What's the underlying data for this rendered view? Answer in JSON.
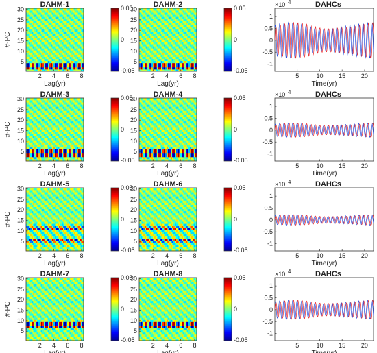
{
  "chart_data": [
    {
      "type": "heatmap",
      "title": "DAHM-1",
      "xlabel": "Lag(yr)",
      "ylabel": "#-PC",
      "xticks": [
        2,
        4,
        6,
        8
      ],
      "yticks": [
        5,
        10,
        15,
        20,
        25,
        30
      ],
      "xlim": [
        0,
        8.3
      ],
      "ylim": [
        0.5,
        30.5
      ],
      "colorbar": {
        "ticks": [
          "0.05",
          "0",
          "-0.05"
        ],
        "clim": [
          -0.05,
          0.05
        ]
      },
      "pattern": "band",
      "band_center": 3,
      "band_half_width": 1.2
    },
    {
      "type": "heatmap",
      "title": "DAHM-2",
      "xlabel": "Lag(yr)",
      "ylabel": "",
      "xticks": [
        2,
        4,
        6,
        8
      ],
      "yticks": [
        5,
        10,
        15,
        20,
        25,
        30
      ],
      "xlim": [
        0,
        8.3
      ],
      "ylim": [
        0.5,
        30.5
      ],
      "colorbar": {
        "ticks": [
          "0.05",
          "0",
          "-0.05"
        ],
        "clim": [
          -0.05,
          0.05
        ]
      },
      "pattern": "band",
      "band_center": 3,
      "band_half_width": 1.2
    },
    {
      "type": "line",
      "title": "DAHCs",
      "xlabel": "Time(yr)",
      "ylabel": "",
      "scale_label": "×10",
      "scale_exponent": "4",
      "xticks": [
        5,
        10,
        15,
        20
      ],
      "yticks": [
        -1,
        -0.5,
        0,
        0.5,
        1
      ],
      "xlim": [
        0,
        22
      ],
      "ylim": [
        -1.3,
        1.35
      ],
      "series": [
        {
          "color": "#e8262a",
          "amplitude": 0.75
        },
        {
          "color": "#2b4fd9",
          "amplitude": 0.75
        }
      ]
    },
    {
      "type": "heatmap",
      "title": "DAHM-3",
      "xlabel": "Lag(yr)",
      "ylabel": "#-PC",
      "xticks": [
        2,
        4,
        6,
        8
      ],
      "yticks": [
        5,
        10,
        15,
        20,
        25,
        30
      ],
      "xlim": [
        0,
        8.3
      ],
      "ylim": [
        0.5,
        30.5
      ],
      "colorbar": {
        "ticks": [
          "0.05",
          "0",
          "-0.05"
        ],
        "clim": [
          -0.05,
          0.05
        ]
      },
      "pattern": "band",
      "band_center": 4.5,
      "band_half_width": 1.5
    },
    {
      "type": "heatmap",
      "title": "DAHM-4",
      "xlabel": "Lag(yr)",
      "ylabel": "",
      "xticks": [
        2,
        4,
        6,
        8
      ],
      "yticks": [
        5,
        10,
        15,
        20,
        25,
        30
      ],
      "xlim": [
        0,
        8.3
      ],
      "ylim": [
        0.5,
        30.5
      ],
      "colorbar": {
        "ticks": [
          "0.05",
          "0",
          "-0.05"
        ],
        "clim": [
          -0.05,
          0.05
        ]
      },
      "pattern": "band",
      "band_center": 4.5,
      "band_half_width": 1.5
    },
    {
      "type": "line",
      "title": "DAHCs",
      "xlabel": "Time(yr)",
      "ylabel": "",
      "scale_label": "×10",
      "scale_exponent": "4",
      "xticks": [
        5,
        10,
        15,
        20
      ],
      "yticks": [
        -1,
        -0.5,
        0,
        0.5,
        1
      ],
      "xlim": [
        0,
        22
      ],
      "ylim": [
        -1.3,
        1.35
      ],
      "series": [
        {
          "color": "#e8262a",
          "amplitude": 0.3
        },
        {
          "color": "#2b4fd9",
          "amplitude": 0.3
        }
      ]
    },
    {
      "type": "heatmap",
      "title": "DAHM-5",
      "xlabel": "Lag(yr)",
      "ylabel": "#-PC",
      "xticks": [
        2,
        4,
        6,
        8
      ],
      "yticks": [
        5,
        10,
        15,
        20,
        25,
        30
      ],
      "xlim": [
        0,
        8.3
      ],
      "ylim": [
        0.5,
        30.5
      ],
      "colorbar": {
        "ticks": [
          "0.05",
          "0",
          "-0.05"
        ],
        "clim": [
          -0.05,
          0.05
        ]
      },
      "pattern": "multi",
      "band_center": 8,
      "band_half_width": 5
    },
    {
      "type": "heatmap",
      "title": "DAHM-6",
      "xlabel": "Lag(yr)",
      "ylabel": "",
      "xticks": [
        2,
        4,
        6,
        8
      ],
      "yticks": [
        5,
        10,
        15,
        20,
        25,
        30
      ],
      "xlim": [
        0,
        8.3
      ],
      "ylim": [
        0.5,
        30.5
      ],
      "colorbar": {
        "ticks": [
          "0.05",
          "0",
          "-0.05"
        ],
        "clim": [
          -0.05,
          0.05
        ]
      },
      "pattern": "multi",
      "band_center": 8,
      "band_half_width": 5
    },
    {
      "type": "line",
      "title": "DAHCs",
      "xlabel": "Time(yr)",
      "ylabel": "",
      "scale_label": "×10",
      "scale_exponent": "4",
      "xticks": [
        5,
        10,
        15,
        20
      ],
      "yticks": [
        -1,
        -0.5,
        0,
        0.5,
        1
      ],
      "xlim": [
        0,
        22
      ],
      "ylim": [
        -1.3,
        1.35
      ],
      "series": [
        {
          "color": "#e8262a",
          "amplitude": 0.22
        },
        {
          "color": "#2b4fd9",
          "amplitude": 0.22
        }
      ]
    },
    {
      "type": "heatmap",
      "title": "DAHM-7",
      "xlabel": "Lag(yr)",
      "ylabel": "#-PC",
      "xticks": [
        2,
        4,
        6,
        8
      ],
      "yticks": [
        5,
        10,
        15,
        20,
        25,
        30
      ],
      "xlim": [
        0,
        8.3
      ],
      "ylim": [
        0.5,
        30.5
      ],
      "colorbar": {
        "ticks": [
          "0.05",
          "0",
          "-0.05"
        ],
        "clim": [
          -0.05,
          0.05
        ]
      },
      "pattern": "band",
      "band_center": 8,
      "band_half_width": 1.2
    },
    {
      "type": "heatmap",
      "title": "DAHM-8",
      "xlabel": "Lag(yr)",
      "ylabel": "",
      "xticks": [
        2,
        4,
        6,
        8
      ],
      "yticks": [
        5,
        10,
        15,
        20,
        25,
        30
      ],
      "xlim": [
        0,
        8.3
      ],
      "ylim": [
        0.5,
        30.5
      ],
      "colorbar": {
        "ticks": [
          "0.05",
          "0",
          "-0.05"
        ],
        "clim": [
          -0.05,
          0.05
        ]
      },
      "pattern": "band",
      "band_center": 8,
      "band_half_width": 1.2
    },
    {
      "type": "line",
      "title": "DAHCs",
      "xlabel": "Time(yr)",
      "ylabel": "",
      "scale_label": "×10",
      "scale_exponent": "4",
      "xticks": [
        5,
        10,
        15,
        20
      ],
      "yticks": [
        -1,
        -0.5,
        0,
        0.5,
        1
      ],
      "xlim": [
        0,
        22
      ],
      "ylim": [
        -1.3,
        1.35
      ],
      "series": [
        {
          "color": "#e8262a",
          "amplitude": 0.4
        },
        {
          "color": "#2b4fd9",
          "amplitude": 0.4
        }
      ]
    }
  ]
}
